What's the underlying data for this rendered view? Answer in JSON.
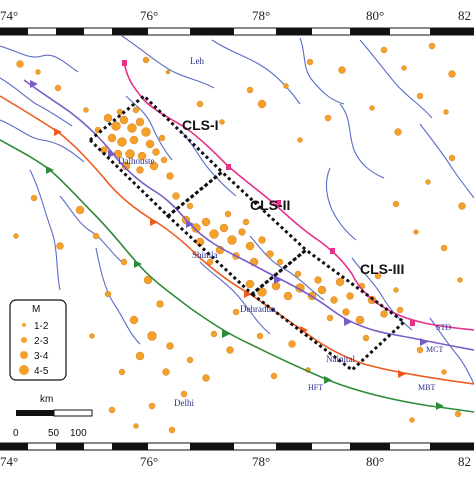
{
  "map": {
    "longitude_ticks": [
      "76°",
      "78°",
      "80°"
    ],
    "partial_tick_left": "74°",
    "partial_tick_right": "82",
    "partial_tick_left_bottom": "74°",
    "partial_tick_right_bottom": "82",
    "clusters": [
      {
        "id": "CLS-I",
        "label": "CLS-I"
      },
      {
        "id": "CLS-II",
        "label": "CLS-II"
      },
      {
        "id": "CLS-III",
        "label": "CLS-III"
      }
    ],
    "places": {
      "leh": "Leh",
      "dalhousie": "Dalhouste",
      "shimla": "Shimla",
      "dehradun": "Dehradun",
      "nainital": "Nainital",
      "delhi": "Delhi"
    },
    "faults": {
      "std": "STD",
      "mct": "MCT",
      "mbt": "MBT",
      "hft": "HFT"
    },
    "legend": {
      "title": "M",
      "entries": [
        {
          "label": "1-2",
          "magnitude_class": 1
        },
        {
          "label": "2-3",
          "magnitude_class": 2
        },
        {
          "label": "3-4",
          "magnitude_class": 3
        },
        {
          "label": "4-5",
          "magnitude_class": 4
        }
      ]
    },
    "scale_bar": {
      "unit": "km",
      "ticks": [
        "0",
        "50",
        "100"
      ]
    },
    "colors": {
      "epicenter": "#f5a02a",
      "std_fault": "#e8318a",
      "mct_fault": "#7a5cc7",
      "mbt_fault": "#f05a1e",
      "hft_fault": "#2e8b3a",
      "rivers": "#5a6cc8",
      "cluster_box": "#111111",
      "frame_dark": "#111111",
      "frame_light": "#ffffff"
    }
  }
}
